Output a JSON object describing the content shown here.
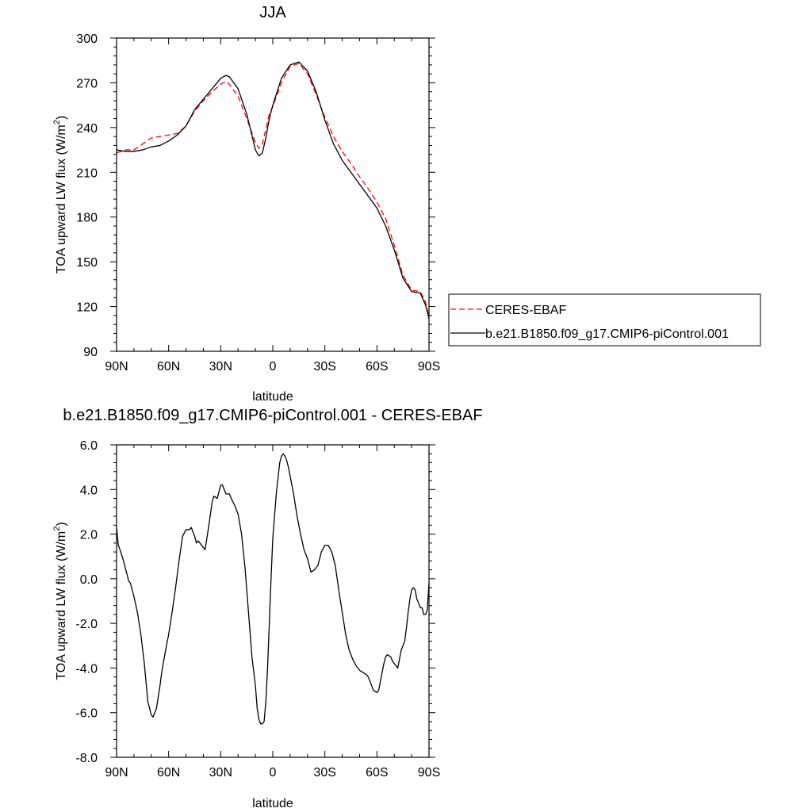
{
  "chart_data": [
    {
      "type": "line",
      "title": "JJA",
      "xlabel": "latitude",
      "ylabel": "TOA upward LW flux (W/m",
      "ylabel_sup": "2",
      "ylabel_end": ")",
      "xlim": [
        90,
        -90
      ],
      "ylim": [
        90,
        300
      ],
      "x_tick_values": [
        90,
        60,
        30,
        0,
        -30,
        -60,
        -90
      ],
      "x_tick_labels": [
        "90N",
        "60N",
        "30N",
        "0",
        "30S",
        "60S",
        "90S"
      ],
      "y_tick_values": [
        90,
        120,
        150,
        180,
        210,
        240,
        270,
        300
      ],
      "y_tick_labels": [
        "90",
        "120",
        "150",
        "180",
        "210",
        "240",
        "270",
        "300"
      ],
      "legend_position": "right",
      "series": [
        {
          "name": "CERES-EBAF",
          "color": "#ff0000",
          "dash": "dashed",
          "x": [
            90,
            85,
            80,
            75,
            70,
            65,
            60,
            55,
            50,
            45,
            40,
            35,
            30,
            27,
            25,
            20,
            15,
            10,
            8,
            6,
            4,
            2,
            0,
            -5,
            -10,
            -15,
            -20,
            -25,
            -30,
            -35,
            -40,
            -45,
            -50,
            -55,
            -60,
            -65,
            -70,
            -75,
            -80,
            -85,
            -88,
            -90
          ],
          "y": [
            223,
            225,
            225,
            229,
            233,
            234,
            235,
            236,
            241,
            251,
            258,
            264,
            269,
            271,
            269,
            261,
            246,
            230,
            226,
            229,
            239,
            249,
            254,
            270,
            281,
            283,
            276,
            262,
            247,
            234,
            224,
            216,
            207,
            199,
            190,
            179,
            161,
            141,
            131,
            130,
            123,
            113
          ]
        },
        {
          "name": "b.e21.B1850.f09_g17.CMIP6-piControl.001",
          "color": "#000000",
          "dash": "solid",
          "x": [
            90,
            85,
            80,
            75,
            70,
            65,
            60,
            55,
            50,
            45,
            40,
            35,
            30,
            27,
            25,
            20,
            15,
            10,
            8,
            6,
            4,
            2,
            0,
            -5,
            -10,
            -15,
            -20,
            -25,
            -30,
            -35,
            -40,
            -45,
            -50,
            -55,
            -60,
            -65,
            -70,
            -75,
            -80,
            -85,
            -88,
            -90
          ],
          "y": [
            225,
            224,
            224,
            225,
            227,
            228,
            231,
            235,
            241,
            252,
            259,
            266,
            273,
            275,
            274,
            266,
            249,
            225,
            221,
            223,
            233,
            246,
            255,
            273,
            282,
            284,
            278,
            264,
            245,
            229,
            218,
            210,
            202,
            194,
            186,
            174,
            158,
            139,
            130,
            129,
            121,
            112
          ]
        }
      ]
    },
    {
      "type": "line",
      "title": "b.e21.B1850.f09_g17.CMIP6-piControl.001 - CERES-EBAF",
      "xlabel": "latitude",
      "ylabel": "TOA upward LW flux (W/m",
      "ylabel_sup": "2",
      "ylabel_end": ")",
      "xlim": [
        90,
        -90
      ],
      "ylim": [
        -8,
        6
      ],
      "x_tick_values": [
        90,
        60,
        30,
        0,
        -30,
        -60,
        -90
      ],
      "x_tick_labels": [
        "90N",
        "60N",
        "30N",
        "0",
        "30S",
        "60S",
        "90S"
      ],
      "y_tick_values": [
        -8,
        -6,
        -4,
        -2,
        0,
        2,
        4,
        6
      ],
      "y_tick_labels": [
        "-8.0",
        "-6.0",
        "-4.0",
        "-2.0",
        "0.0",
        "2.0",
        "4.0",
        "6.0"
      ],
      "series": [
        {
          "color": "#000000",
          "dash": "solid",
          "x": [
            90,
            89,
            88,
            86,
            85,
            84,
            83,
            82,
            80,
            78,
            76,
            74,
            72,
            70,
            69,
            68,
            67,
            66,
            65,
            64,
            62,
            60,
            58,
            56,
            54,
            52,
            50,
            48,
            47,
            45,
            44,
            43,
            42,
            40,
            39,
            38,
            37,
            35,
            34,
            32,
            31,
            30,
            29,
            28,
            27,
            26,
            25,
            24,
            22,
            20,
            18,
            16,
            14,
            12,
            10,
            9,
            8,
            7,
            6,
            5,
            4,
            3,
            2,
            1,
            0,
            -2,
            -4,
            -5,
            -6,
            -7,
            -8,
            -9,
            -10,
            -12,
            -14,
            -16,
            -18,
            -20,
            -22,
            -24,
            -26,
            -27,
            -28,
            -30,
            -32,
            -34,
            -36,
            -38,
            -40,
            -42,
            -44,
            -46,
            -48,
            -50,
            -52,
            -54,
            -55,
            -56,
            -57,
            -58,
            -60,
            -61,
            -62,
            -63,
            -64,
            -65,
            -66,
            -68,
            -69,
            -70,
            -71,
            -72,
            -73,
            -74,
            -75,
            -76,
            -77,
            -78,
            -79,
            -80,
            -81,
            -82,
            -83,
            -84,
            -85,
            -86,
            -87,
            -88,
            -89,
            -90
          ],
          "y": [
            2.3,
            1.5,
            1.3,
            0.8,
            0.5,
            0.2,
            -0.1,
            -0.2,
            -0.8,
            -1.5,
            -2.5,
            -3.8,
            -5.5,
            -6.1,
            -6.2,
            -6.0,
            -5.8,
            -5.3,
            -4.8,
            -4.2,
            -3.3,
            -2.5,
            -1.5,
            -0.4,
            0.8,
            1.9,
            2.2,
            2.2,
            2.3,
            1.9,
            1.6,
            1.7,
            1.6,
            1.4,
            1.3,
            1.8,
            2.3,
            3.4,
            3.7,
            3.6,
            3.9,
            4.2,
            4.2,
            4.0,
            3.8,
            3.8,
            3.8,
            3.6,
            3.3,
            2.9,
            2.0,
            0.5,
            -1.5,
            -3.5,
            -4.8,
            -5.8,
            -6.3,
            -6.5,
            -6.5,
            -6.4,
            -5.5,
            -4.0,
            -2.0,
            0.0,
            1.8,
            3.8,
            5.2,
            5.5,
            5.6,
            5.5,
            5.3,
            5.0,
            4.6,
            3.8,
            2.8,
            2.0,
            1.3,
            0.9,
            0.3,
            0.4,
            0.6,
            0.9,
            1.2,
            1.5,
            1.5,
            1.2,
            0.6,
            -0.5,
            -1.5,
            -2.5,
            -3.2,
            -3.6,
            -3.9,
            -4.1,
            -4.2,
            -4.3,
            -4.4,
            -4.6,
            -4.8,
            -5.0,
            -5.1,
            -5.0,
            -4.6,
            -4.2,
            -3.8,
            -3.5,
            -3.4,
            -3.5,
            -3.7,
            -3.8,
            -3.9,
            -4.0,
            -3.6,
            -3.2,
            -3.0,
            -2.8,
            -2.2,
            -1.5,
            -0.9,
            -0.5,
            -0.4,
            -0.5,
            -0.9,
            -1.1,
            -1.3,
            -1.3,
            -1.6,
            -1.6,
            -1.4,
            -0.2
          ]
        }
      ]
    }
  ]
}
